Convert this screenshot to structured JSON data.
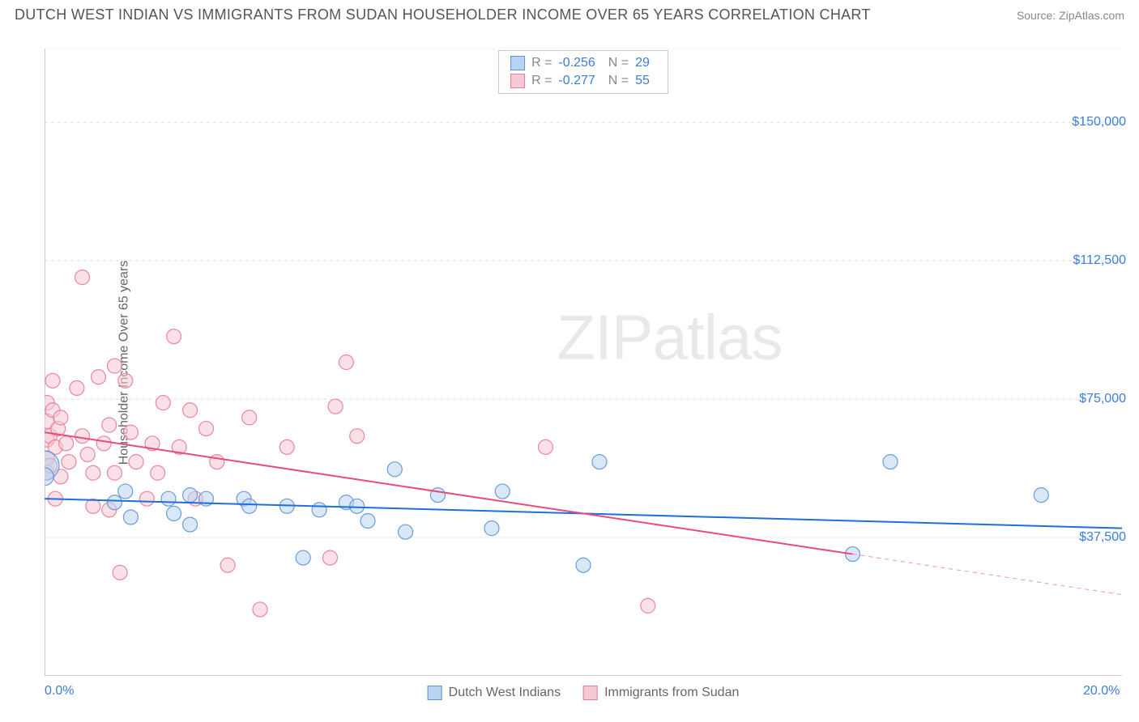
{
  "header": {
    "title": "DUTCH WEST INDIAN VS IMMIGRANTS FROM SUDAN HOUSEHOLDER INCOME OVER 65 YEARS CORRELATION CHART",
    "source": "Source: ZipAtlas.com"
  },
  "watermark": {
    "bold": "ZIP",
    "light": "atlas"
  },
  "chart": {
    "type": "scatter",
    "y_label": "Householder Income Over 65 years",
    "xlim": [
      0,
      20
    ],
    "ylim": [
      0,
      170000
    ],
    "x_ticks": [
      0,
      2.5,
      5,
      7.5,
      10,
      12.5,
      15,
      17.5,
      20
    ],
    "x_tick_labels": {
      "0": "0.0%",
      "20": "20.0%"
    },
    "y_gridlines": [
      37500,
      75000,
      112500,
      150000,
      170000
    ],
    "y_tick_labels": {
      "37500": "$37,500",
      "75000": "$75,000",
      "112500": "$112,500",
      "150000": "$150,000"
    },
    "colors": {
      "series_a_fill": "#b9d4f0",
      "series_a_stroke": "#5b94d6",
      "series_a_line": "#1e6fd9",
      "series_b_fill": "#f7c9d4",
      "series_b_stroke": "#e77b95",
      "series_b_line": "#e94b7a",
      "grid": "#dddddd",
      "axis": "#bcbcbc",
      "text_axis": "#3b7dd8"
    },
    "marker_radius": 9,
    "marker_opacity": 0.55,
    "line_width": 2,
    "stats": {
      "series_a": {
        "R": "-0.256",
        "N": "29"
      },
      "series_b": {
        "R": "-0.277",
        "N": "55"
      }
    },
    "legend": {
      "series_a": "Dutch West Indians",
      "series_b": "Immigrants from Sudan"
    },
    "trend_lines": {
      "series_a": {
        "x1": 0,
        "y1": 48000,
        "x2": 20,
        "y2": 40000,
        "dash_from_x": null
      },
      "series_b": {
        "x1": 0,
        "y1": 66000,
        "x2": 20,
        "y2": 22000,
        "dash_from_x": 15
      }
    },
    "series_a_points": [
      [
        0.0,
        57000,
        18
      ],
      [
        0.0,
        54000,
        11
      ],
      [
        1.3,
        47000
      ],
      [
        1.5,
        50000
      ],
      [
        1.6,
        43000
      ],
      [
        2.3,
        48000
      ],
      [
        2.4,
        44000
      ],
      [
        2.7,
        41000
      ],
      [
        2.7,
        49000
      ],
      [
        3.0,
        48000
      ],
      [
        3.7,
        48000
      ],
      [
        3.8,
        46000
      ],
      [
        4.5,
        46000
      ],
      [
        4.8,
        32000
      ],
      [
        5.1,
        45000
      ],
      [
        5.6,
        47000
      ],
      [
        5.8,
        46000
      ],
      [
        6.0,
        42000
      ],
      [
        6.5,
        56000
      ],
      [
        6.7,
        39000
      ],
      [
        7.3,
        49000
      ],
      [
        8.3,
        40000
      ],
      [
        8.5,
        50000
      ],
      [
        10.0,
        30000
      ],
      [
        10.3,
        58000
      ],
      [
        15.0,
        33000
      ],
      [
        15.7,
        58000
      ],
      [
        18.5,
        49000
      ]
    ],
    "series_b_points": [
      [
        0.05,
        74000
      ],
      [
        0.05,
        69000
      ],
      [
        0.05,
        64000
      ],
      [
        0.05,
        59000
      ],
      [
        0.05,
        55000
      ],
      [
        0.1,
        65000
      ],
      [
        0.1,
        57000
      ],
      [
        0.15,
        80000
      ],
      [
        0.15,
        72000
      ],
      [
        0.2,
        62000
      ],
      [
        0.2,
        48000
      ],
      [
        0.25,
        67000
      ],
      [
        0.3,
        70000
      ],
      [
        0.3,
        54000
      ],
      [
        0.4,
        63000
      ],
      [
        0.45,
        58000
      ],
      [
        0.6,
        78000
      ],
      [
        0.7,
        108000
      ],
      [
        0.7,
        65000
      ],
      [
        0.8,
        60000
      ],
      [
        0.9,
        46000
      ],
      [
        0.9,
        55000
      ],
      [
        1.0,
        81000
      ],
      [
        1.1,
        63000
      ],
      [
        1.2,
        45000
      ],
      [
        1.2,
        68000
      ],
      [
        1.3,
        84000
      ],
      [
        1.3,
        55000
      ],
      [
        1.4,
        28000
      ],
      [
        1.5,
        80000
      ],
      [
        1.6,
        66000
      ],
      [
        1.7,
        58000
      ],
      [
        1.9,
        48000
      ],
      [
        2.0,
        63000
      ],
      [
        2.1,
        55000
      ],
      [
        2.2,
        74000
      ],
      [
        2.4,
        92000
      ],
      [
        2.5,
        62000
      ],
      [
        2.7,
        72000
      ],
      [
        2.8,
        48000
      ],
      [
        3.0,
        67000
      ],
      [
        3.2,
        58000
      ],
      [
        3.4,
        30000
      ],
      [
        3.8,
        70000
      ],
      [
        4.0,
        18000
      ],
      [
        4.5,
        62000
      ],
      [
        5.3,
        32000
      ],
      [
        5.4,
        73000
      ],
      [
        5.6,
        85000
      ],
      [
        5.8,
        65000
      ],
      [
        9.3,
        62000
      ],
      [
        11.2,
        19000
      ]
    ]
  }
}
